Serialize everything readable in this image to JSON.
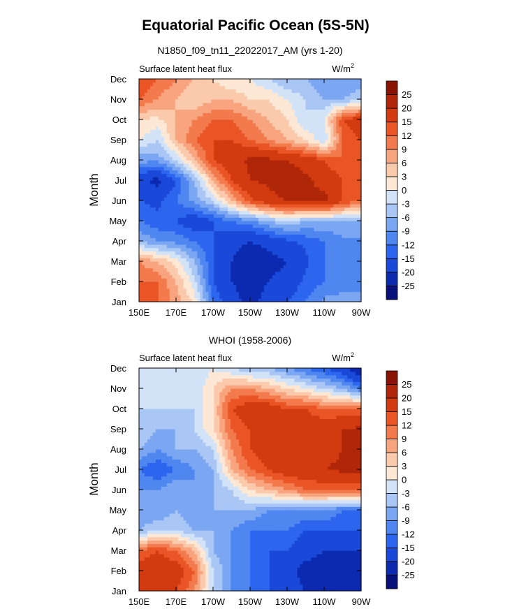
{
  "figure": {
    "title": "Equatorial Pacific Ocean (5S-5N)",
    "units_base": "W/m",
    "units_exponent": "2"
  },
  "colors": {
    "frame": "#000000",
    "levels": [
      "#08107a",
      "#0c2ab0",
      "#1a48d8",
      "#2d66ee",
      "#4f86f0",
      "#7aa6f2",
      "#a9c6f5",
      "#d2e3f8",
      "#fde8d6",
      "#fbc9ab",
      "#f8a47e",
      "#f27a4c",
      "#ea5526",
      "#d23a10",
      "#b02608",
      "#8a1404"
    ]
  },
  "chart_data": [
    {
      "type": "heatmap",
      "title": "N1850_f09_tn11_22022017_AM (yrs 1-20)",
      "left_label": "Surface latent heat flux",
      "units": "W/m2",
      "xlabel": "",
      "ylabel": "Month",
      "x_ticks": [
        "150E",
        "170E",
        "170W",
        "150W",
        "130W",
        "110W",
        "90W"
      ],
      "y_ticks": [
        "Jan",
        "Feb",
        "Mar",
        "Apr",
        "May",
        "Jun",
        "Jul",
        "Aug",
        "Sep",
        "Oct",
        "Nov",
        "Dec"
      ],
      "colorbar_levels": [
        "-25",
        "-20",
        "-15",
        "-12",
        "-9",
        "-6",
        "-3",
        "0",
        "3",
        "6",
        "9",
        "12",
        "15",
        "20",
        "25"
      ],
      "grid_columns": [
        "150E",
        "160E",
        "170E",
        "180",
        "170W",
        "160W",
        "150W",
        "140W",
        "130W",
        "120W",
        "110W",
        "100W",
        "90W"
      ],
      "values": [
        [
          14,
          12,
          8,
          2,
          -12,
          -18,
          -22,
          -18,
          -15,
          -12,
          -8,
          -8,
          -8
        ],
        [
          12,
          12,
          6,
          -2,
          -15,
          -20,
          -22,
          -20,
          -18,
          -14,
          -12,
          -10,
          -10
        ],
        [
          9,
          6,
          2,
          -6,
          -15,
          -20,
          -25,
          -22,
          -20,
          -16,
          -12,
          -10,
          -10
        ],
        [
          -6,
          -9,
          -10,
          -12,
          -15,
          -18,
          -20,
          -18,
          -16,
          -14,
          -12,
          -10,
          -10
        ],
        [
          -12,
          -14,
          -15,
          -18,
          -15,
          -12,
          -10,
          -6,
          -3,
          -6,
          -6,
          -6,
          -6
        ],
        [
          -15,
          -16,
          -12,
          -8,
          -3,
          6,
          14,
          18,
          20,
          21,
          22,
          15,
          12
        ],
        [
          -18,
          -22,
          -15,
          -6,
          6,
          15,
          20,
          21,
          24,
          21,
          18,
          15,
          15
        ],
        [
          -8,
          -8,
          -3,
          6,
          15,
          18,
          21,
          21,
          20,
          18,
          15,
          12,
          12
        ],
        [
          0,
          -3,
          6,
          12,
          15,
          15,
          12,
          9,
          6,
          3,
          -3,
          12,
          15
        ],
        [
          3,
          2,
          6,
          9,
          12,
          12,
          9,
          6,
          3,
          -3,
          0,
          15,
          18
        ],
        [
          12,
          9,
          6,
          3,
          6,
          6,
          3,
          3,
          0,
          -3,
          -6,
          -6,
          -3
        ],
        [
          15,
          12,
          9,
          6,
          3,
          0,
          0,
          -3,
          -6,
          -6,
          -9,
          -9,
          -9
        ]
      ]
    },
    {
      "type": "heatmap",
      "title": "WHOI (1958-2006)",
      "left_label": "Surface latent heat flux",
      "units": "W/m2",
      "xlabel": "",
      "ylabel": "Month",
      "x_ticks": [
        "150E",
        "170E",
        "170W",
        "150W",
        "130W",
        "110W",
        "90W"
      ],
      "y_ticks": [
        "Jan",
        "Feb",
        "Mar",
        "Apr",
        "May",
        "Jun",
        "Jul",
        "Aug",
        "Sep",
        "Oct",
        "Nov",
        "Dec"
      ],
      "colorbar_levels": [
        "-25",
        "-20",
        "-15",
        "-12",
        "-9",
        "-6",
        "-3",
        "0",
        "3",
        "6",
        "9",
        "12",
        "15",
        "20",
        "25"
      ],
      "grid_columns": [
        "150E",
        "160E",
        "170E",
        "180",
        "170W",
        "160W",
        "150W",
        "140W",
        "130W",
        "120W",
        "110W",
        "100W",
        "90W"
      ],
      "values": [
        [
          15,
          18,
          15,
          9,
          -3,
          -9,
          -12,
          -15,
          -18,
          -20,
          -22,
          -25,
          -25
        ],
        [
          18,
          18,
          18,
          12,
          -3,
          -9,
          -12,
          -15,
          -18,
          -22,
          -22,
          -25,
          -22
        ],
        [
          12,
          15,
          12,
          6,
          -6,
          -9,
          -12,
          -15,
          -15,
          -18,
          -20,
          -20,
          -20
        ],
        [
          -6,
          -3,
          -3,
          -6,
          -6,
          -9,
          -12,
          -12,
          -12,
          -15,
          -15,
          -15,
          -15
        ],
        [
          -9,
          -9,
          -6,
          -9,
          -6,
          -6,
          -6,
          -9,
          -9,
          -9,
          -9,
          -12,
          -12
        ],
        [
          -9,
          -9,
          -6,
          -9,
          -6,
          -3,
          3,
          6,
          9,
          12,
          12,
          12,
          12
        ],
        [
          -12,
          -15,
          -12,
          -9,
          -6,
          6,
          12,
          15,
          18,
          18,
          20,
          21,
          21
        ],
        [
          -6,
          -9,
          -6,
          -6,
          -3,
          9,
          15,
          18,
          20,
          18,
          18,
          20,
          21
        ],
        [
          -3,
          -6,
          -6,
          -3,
          3,
          12,
          15,
          18,
          18,
          18,
          18,
          20,
          21
        ],
        [
          -3,
          -3,
          -3,
          -3,
          3,
          15,
          18,
          18,
          15,
          15,
          12,
          12,
          12
        ],
        [
          -3,
          -3,
          -3,
          -3,
          3,
          9,
          9,
          6,
          3,
          0,
          -3,
          -6,
          -12
        ],
        [
          -3,
          -3,
          -3,
          -3,
          0,
          -3,
          -6,
          -6,
          -9,
          -12,
          -15,
          -18,
          -25
        ]
      ]
    }
  ]
}
